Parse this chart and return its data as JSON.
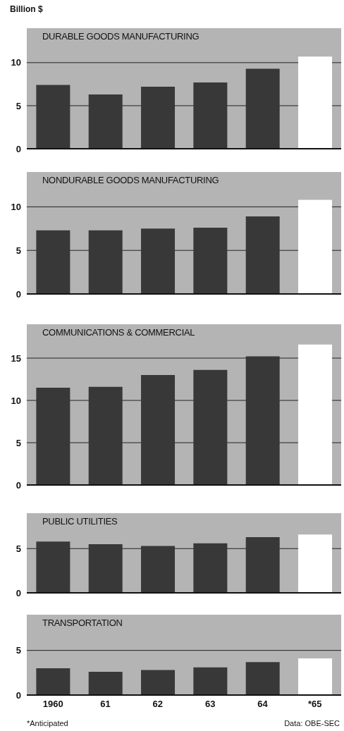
{
  "chart_data": [
    {
      "type": "bar",
      "title": "DURABLE GOODS MANUFACTURING",
      "ylabel": "Billion $",
      "categories": [
        null,
        null,
        null,
        null,
        null,
        null
      ],
      "values": [
        7.4,
        6.3,
        7.2,
        7.7,
        9.3,
        10.7
      ],
      "colors": [
        "#383838",
        "#383838",
        "#383838",
        "#383838",
        "#383838",
        "#ffffff"
      ],
      "ylim": [
        0,
        14
      ],
      "yticks": [
        0,
        5,
        10
      ],
      "grid": "y",
      "tick_labels": "y"
    },
    {
      "type": "bar",
      "title": "NONDURABLE GOODS MANUFACTURING",
      "categories": [
        null,
        null,
        null,
        null,
        null,
        null
      ],
      "values": [
        7.3,
        7.3,
        7.5,
        7.6,
        8.9,
        10.8
      ],
      "colors": [
        "#383838",
        "#383838",
        "#383838",
        "#383838",
        "#383838",
        "#ffffff"
      ],
      "ylim": [
        0,
        14
      ],
      "yticks": [
        0,
        5,
        10
      ],
      "grid": "y",
      "tick_labels": "y"
    },
    {
      "type": "bar",
      "title": "COMMUNICATIONS & COMMERCIAL",
      "categories": [
        null,
        null,
        null,
        null,
        null,
        null
      ],
      "values": [
        11.5,
        11.6,
        13.0,
        13.6,
        15.2,
        16.6
      ],
      "colors": [
        "#383838",
        "#383838",
        "#383838",
        "#383838",
        "#383838",
        "#ffffff"
      ],
      "ylim": [
        0,
        19
      ],
      "yticks": [
        0,
        5,
        10,
        15
      ],
      "grid": "y",
      "tick_labels": "y"
    },
    {
      "type": "bar",
      "title": "PUBLIC UTILITIES",
      "categories": [
        null,
        null,
        null,
        null,
        null,
        null
      ],
      "values": [
        5.8,
        5.5,
        5.3,
        5.6,
        6.3,
        6.6
      ],
      "colors": [
        "#383838",
        "#383838",
        "#383838",
        "#383838",
        "#383838",
        "#ffffff"
      ],
      "ylim": [
        0,
        9
      ],
      "yticks": [
        0,
        5
      ],
      "grid": "y",
      "tick_labels": "y"
    },
    {
      "type": "bar",
      "title": "TRANSPORTATION",
      "categories": [
        "1960",
        "61",
        "62",
        "63",
        "64",
        "*65"
      ],
      "values": [
        3.0,
        2.6,
        2.8,
        3.1,
        3.7,
        4.1
      ],
      "colors": [
        "#383838",
        "#383838",
        "#383838",
        "#383838",
        "#383838",
        "#ffffff"
      ],
      "ylim": [
        0,
        9
      ],
      "yticks": [
        0,
        5
      ],
      "grid": "y",
      "annotations": [
        "*Anticipated",
        "Data: OBE-SEC"
      ]
    }
  ]
}
